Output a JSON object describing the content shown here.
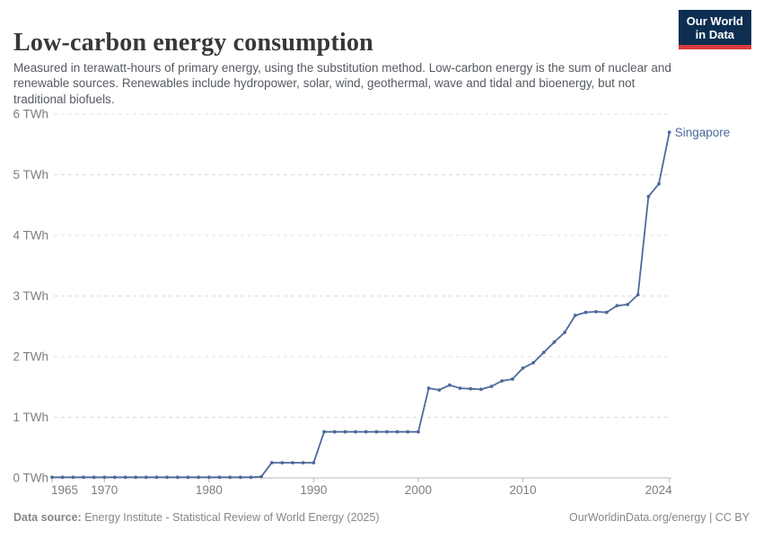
{
  "header": {
    "title": "Low-carbon energy consumption",
    "subtitle": "Measured in terawatt-hours of primary energy, using the substitution method. Low-carbon energy is the sum of nuclear and renewable sources. Renewables include hydropower, solar, wind, geothermal, wave and tidal and bioenergy, but not traditional biofuels."
  },
  "logo": {
    "line1": "Our World",
    "line2": "in Data",
    "bg": "#0d2e51",
    "accent": "#d93b3f"
  },
  "chart_data": {
    "type": "line",
    "title": "Low-carbon energy consumption",
    "entity": "Singapore",
    "unit": "TWh",
    "line_color": "#4c6a9c",
    "grid": "horizontal-dashed",
    "legend_position": "end-of-line-label",
    "xlim": [
      1965,
      2024
    ],
    "ylim": [
      0,
      6
    ],
    "yticks": [
      0,
      1,
      2,
      3,
      4,
      5,
      6
    ],
    "ytick_labels": [
      "0 TWh",
      "1 TWh",
      "2 TWh",
      "3 TWh",
      "4 TWh",
      "5 TWh",
      "6 TWh"
    ],
    "xticks": [
      1965,
      1970,
      1980,
      1990,
      2000,
      2010,
      2024
    ],
    "years": [
      1965,
      1966,
      1967,
      1968,
      1969,
      1970,
      1971,
      1972,
      1973,
      1974,
      1975,
      1976,
      1977,
      1978,
      1979,
      1980,
      1981,
      1982,
      1983,
      1984,
      1985,
      1986,
      1987,
      1988,
      1989,
      1990,
      1991,
      1992,
      1993,
      1994,
      1995,
      1996,
      1997,
      1998,
      1999,
      2000,
      2001,
      2002,
      2003,
      2004,
      2005,
      2006,
      2007,
      2008,
      2009,
      2010,
      2011,
      2012,
      2013,
      2014,
      2015,
      2016,
      2017,
      2018,
      2019,
      2020,
      2021,
      2022,
      2023,
      2024
    ],
    "values": [
      0.01,
      0.01,
      0.01,
      0.01,
      0.01,
      0.01,
      0.01,
      0.01,
      0.01,
      0.01,
      0.01,
      0.01,
      0.01,
      0.01,
      0.01,
      0.01,
      0.01,
      0.01,
      0.01,
      0.01,
      0.02,
      0.25,
      0.25,
      0.25,
      0.25,
      0.25,
      0.76,
      0.76,
      0.76,
      0.76,
      0.76,
      0.76,
      0.76,
      0.76,
      0.76,
      0.76,
      1.48,
      1.45,
      1.53,
      1.48,
      1.47,
      1.46,
      1.51,
      1.6,
      1.63,
      1.81,
      1.9,
      2.07,
      2.24,
      2.4,
      2.68,
      2.73,
      2.74,
      2.73,
      2.84,
      2.86,
      3.02,
      4.64,
      4.85,
      5.7
    ]
  },
  "footer": {
    "source_label": "Data source:",
    "source_text": " Energy Institute - Statistical Review of World Energy (2025)",
    "right_text": "OurWorldinData.org/energy | CC BY"
  }
}
